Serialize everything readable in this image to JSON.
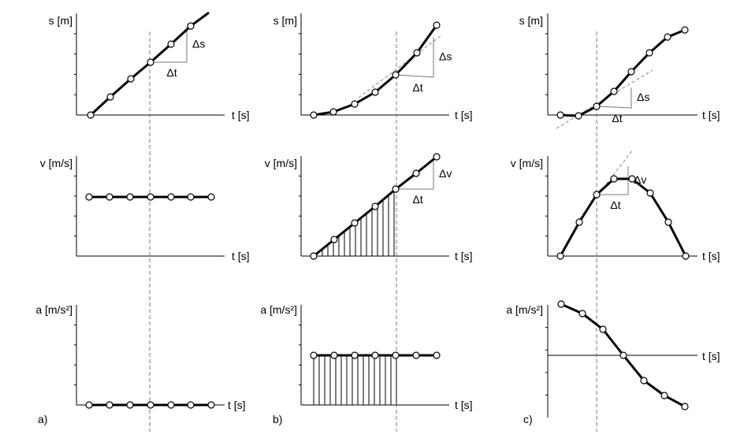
{
  "columns": [
    {
      "id": "a",
      "caption": "a)",
      "plots": [
        {
          "ylabel": "s [m]",
          "xlabel": "t [s]",
          "curve": [
            [
              115,
              146
            ],
            [
              140,
              123
            ],
            [
              166,
              100
            ],
            [
              191,
              79
            ],
            [
              217,
              56
            ],
            [
              242,
              33
            ],
            [
              265,
              16
            ]
          ],
          "points": [
            [
              115,
              146
            ],
            [
              140,
              123
            ],
            [
              166,
              100
            ],
            [
              191,
              79
            ],
            [
              217,
              56
            ],
            [
              242,
              33
            ]
          ],
          "triangle": {
            "p1": [
              191,
              79
            ],
            "p2": [
              237,
              79
            ],
            "p3": [
              237,
              34
            ],
            "dx_label": "Δt",
            "dy_label": "Δs"
          }
        },
        {
          "ylabel": "v [m/s]",
          "xlabel": "t [s]",
          "curve": [
            [
              113,
              250
            ],
            [
              269,
              250
            ]
          ],
          "points": [
            [
              113,
              250
            ],
            [
              139,
              250
            ],
            [
              165,
              250
            ],
            [
              191,
              250
            ],
            [
              217,
              250
            ],
            [
              242,
              250
            ],
            [
              268,
              250
            ]
          ]
        },
        {
          "ylabel": "a [m/s²]",
          "xlabel": "t [s]",
          "curve": [
            [
              113,
              514
            ],
            [
              269,
              514
            ]
          ],
          "points": [
            [
              113,
              514
            ],
            [
              139,
              514
            ],
            [
              165,
              514
            ],
            [
              191,
              514
            ],
            [
              217,
              514
            ],
            [
              242,
              514
            ],
            [
              268,
              514
            ]
          ]
        }
      ]
    },
    {
      "id": "b",
      "caption": "b)",
      "plots": [
        {
          "ylabel": "s [m]",
          "xlabel": "t [s]",
          "curve": [
            [
              398,
              146
            ],
            [
              423,
              142
            ],
            [
              450,
              132
            ],
            [
              476,
              117
            ],
            [
              502,
              95
            ],
            [
              529,
              67
            ],
            [
              554,
              32
            ]
          ],
          "points": [
            [
              398,
              146
            ],
            [
              423,
              142
            ],
            [
              450,
              132
            ],
            [
              476,
              117
            ],
            [
              502,
              95
            ],
            [
              529,
              67
            ],
            [
              554,
              32
            ]
          ],
          "tangent": [
            [
              455,
              124
            ],
            [
              560,
              45
            ]
          ],
          "triangle": {
            "p1": [
              502,
              95
            ],
            "p2": [
              550,
              98
            ],
            "p3": [
              550,
              47
            ],
            "dx_label": "Δt",
            "dy_label": "Δs"
          }
        },
        {
          "ylabel": "v [m/s]",
          "xlabel": "t [s]",
          "curve": [
            [
              398,
              325
            ],
            [
              424,
              304
            ],
            [
              450,
              283
            ],
            [
              476,
              262
            ],
            [
              502,
              240
            ],
            [
              528,
              220
            ],
            [
              554,
              199
            ]
          ],
          "points": [
            [
              398,
              325
            ],
            [
              424,
              304
            ],
            [
              450,
              283
            ],
            [
              476,
              262
            ],
            [
              502,
              240
            ],
            [
              528,
              220
            ],
            [
              554,
              199
            ]
          ],
          "triangle": {
            "p1": [
              502,
              240
            ],
            "p2": [
              550,
              240
            ],
            "p3": [
              550,
              202
            ],
            "dx_label": "Δt",
            "dy_label": "Δv"
          },
          "hatch": "under-curve"
        },
        {
          "ylabel": "a [m/s²]",
          "xlabel": "t [s]",
          "curve": [
            [
              398,
              451
            ],
            [
              555,
              451
            ]
          ],
          "points": [
            [
              398,
              451
            ],
            [
              424,
              451
            ],
            [
              450,
              451
            ],
            [
              476,
              451
            ],
            [
              502,
              451
            ],
            [
              528,
              451
            ],
            [
              554,
              451
            ]
          ],
          "hatch": "rectangle"
        }
      ]
    },
    {
      "id": "c",
      "caption": "c)",
      "plots": [
        {
          "ylabel": "s [m]",
          "xlabel": "t [s]",
          "curve": [
            [
              711,
              146
            ],
            [
              734,
              147
            ],
            [
              757,
              135
            ],
            [
              779,
              116
            ],
            [
              801,
              91
            ],
            [
              824,
              67
            ],
            [
              847,
              47
            ],
            [
              869,
              38
            ]
          ],
          "points": [
            [
              711,
              146
            ],
            [
              734,
              147
            ],
            [
              757,
              135
            ],
            [
              779,
              116
            ],
            [
              801,
              91
            ],
            [
              824,
              67
            ],
            [
              847,
              47
            ],
            [
              869,
              38
            ]
          ],
          "tangent": [
            [
              706,
              163
            ],
            [
              828,
              89
            ]
          ],
          "triangle": {
            "p1": [
              757,
              135
            ],
            "p2": [
              801,
              137
            ],
            "p3": [
              801,
              111
            ],
            "dx_label": "Δt",
            "dy_label": "Δs"
          }
        },
        {
          "ylabel": "v [m/s]",
          "xlabel": "t [s]",
          "curve": [
            [
              711,
              325
            ],
            [
              735,
              282
            ],
            [
              757,
              247
            ],
            [
              779,
              227
            ],
            [
              802,
              227
            ],
            [
              825,
              245
            ],
            [
              848,
              282
            ],
            [
              870,
              325
            ]
          ],
          "points": [
            [
              711,
              325
            ],
            [
              735,
              282
            ],
            [
              757,
              247
            ],
            [
              779,
              227
            ],
            [
              802,
              227
            ],
            [
              825,
              245
            ],
            [
              848,
              282
            ],
            [
              870,
              325
            ]
          ],
          "tangent": [
            [
              735,
              278
            ],
            [
              803,
              190
            ]
          ],
          "triangle": {
            "p1": [
              757,
              247
            ],
            "p2": [
              797,
              247
            ],
            "p3": [
              797,
              211
            ],
            "dx_label": "Δt",
            "dy_label": "Δv"
          }
        },
        {
          "ylabel": "a [m/s²]",
          "xlabel": "t [s]",
          "curve": [
            [
              712,
              386
            ],
            [
              739,
              398
            ],
            [
              765,
              418
            ],
            [
              791,
              451
            ],
            [
              817,
              483
            ],
            [
              843,
              502
            ],
            [
              869,
              516
            ]
          ],
          "points": [
            [
              712,
              386
            ],
            [
              739,
              398
            ],
            [
              765,
              418
            ],
            [
              791,
              451
            ],
            [
              817,
              483
            ],
            [
              843,
              502
            ],
            [
              869,
              516
            ]
          ]
        }
      ]
    }
  ]
}
